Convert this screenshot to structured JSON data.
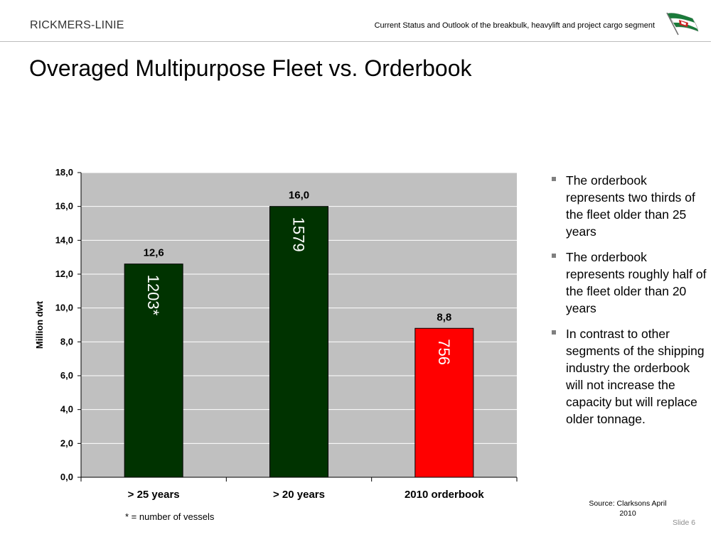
{
  "header": {
    "brand": "RICKMERS-LINIE",
    "subtitle": "Current Status and Outlook of the breakbulk, heavylift and project cargo segment"
  },
  "title": "Overaged Multipurpose Fleet vs. Orderbook",
  "chart_data": {
    "type": "bar",
    "categories": [
      "> 25 years",
      "> 20 years",
      "2010 orderbook"
    ],
    "values": [
      12.6,
      16.0,
      8.8
    ],
    "value_labels": [
      "12,6",
      "16,0",
      "8,8"
    ],
    "inner_labels": [
      "1203*",
      "1579",
      "756"
    ],
    "bar_colors": [
      "#003300",
      "#003300",
      "#ff0000"
    ],
    "ylabel": "Million dwt",
    "ylim": [
      0,
      18
    ],
    "yticks": [
      0,
      2,
      4,
      6,
      8,
      10,
      12,
      14,
      16,
      18
    ],
    "ytick_labels": [
      "0,0",
      "2,0",
      "4,0",
      "6,0",
      "8,0",
      "10,0",
      "12,0",
      "14,0",
      "16,0",
      "18,0"
    ],
    "plot_background": "#c0c0c0",
    "grid": true
  },
  "footnote": "* = number of vessels",
  "bullets": [
    "The orderbook represents two thirds of the fleet older than 25 years",
    "The orderbook represents roughly half of the fleet older than 20 years",
    "In contrast to other segments of the shipping industry the orderbook will not increase the capacity but will replace older tonnage."
  ],
  "source": "Source: Clarksons April 2010",
  "slide_label": "Slide 6",
  "colors": {
    "dark_bar": "#003300",
    "red_bar": "#ff0000",
    "flag_green": "#1a7a3a",
    "flag_red": "#cc2222"
  }
}
